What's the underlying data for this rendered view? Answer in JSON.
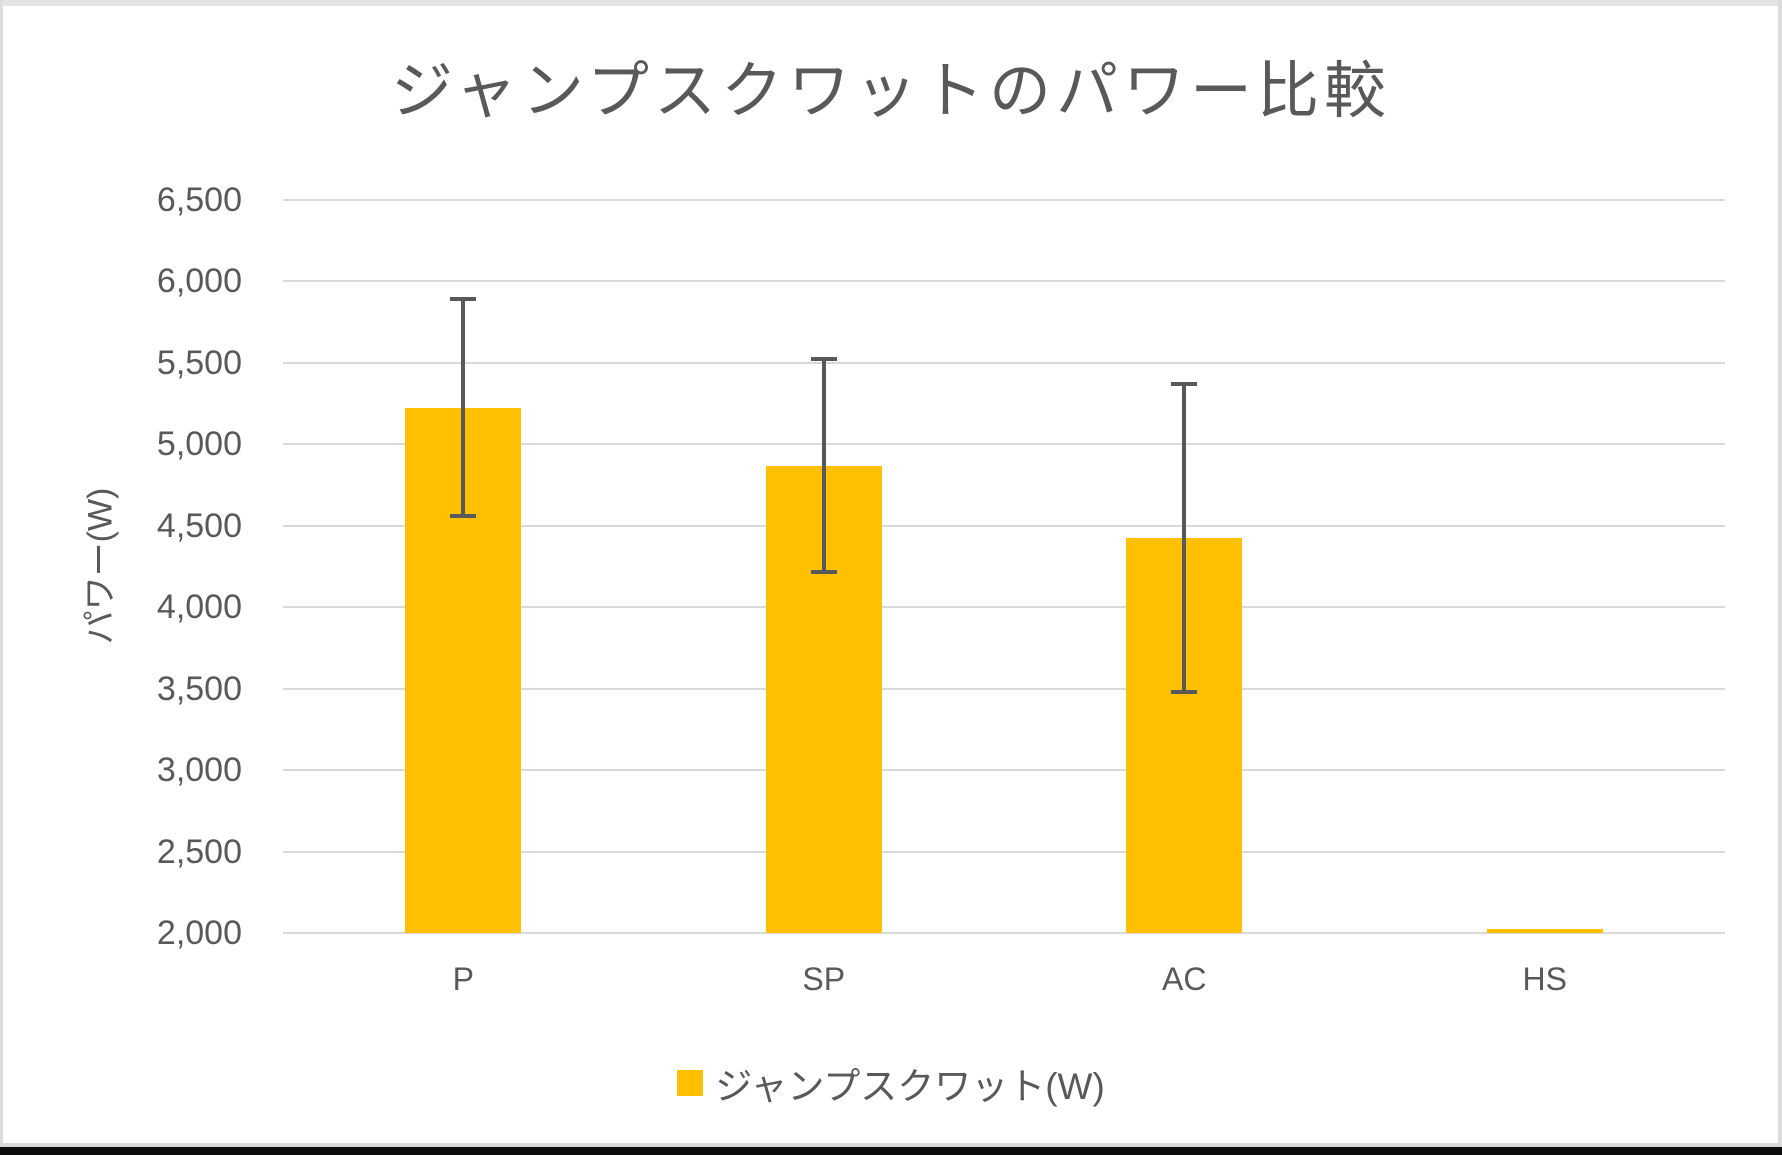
{
  "chart_data": {
    "type": "bar",
    "title": "ジャンプスクワットのパワー比較",
    "categories": [
      "P",
      "SP",
      "AC",
      "HS"
    ],
    "series": [
      {
        "name": "ジャンプスクワット(W)",
        "values": [
          5225,
          4870,
          4425,
          2020
        ],
        "error_bars_plus_minus": [
          665,
          655,
          945,
          0
        ],
        "color": "#ffc000"
      }
    ],
    "xlabel": "",
    "ylabel": "パワー(W)",
    "ylim": [
      2000,
      6500
    ],
    "ytick_step": 500,
    "ytick_labels": [
      "2,000",
      "2,500",
      "3,000",
      "3,500",
      "4,000",
      "4,500",
      "5,000",
      "5,500",
      "6,000",
      "6,500"
    ],
    "grid": true,
    "legend_position": "bottom",
    "colors": {
      "text": "#595959",
      "gridline": "#d9d9d9",
      "error_bar": "#595959",
      "bar_fill": "#ffc000"
    }
  },
  "legend": {
    "label": "ジャンプスクワット(W)"
  }
}
